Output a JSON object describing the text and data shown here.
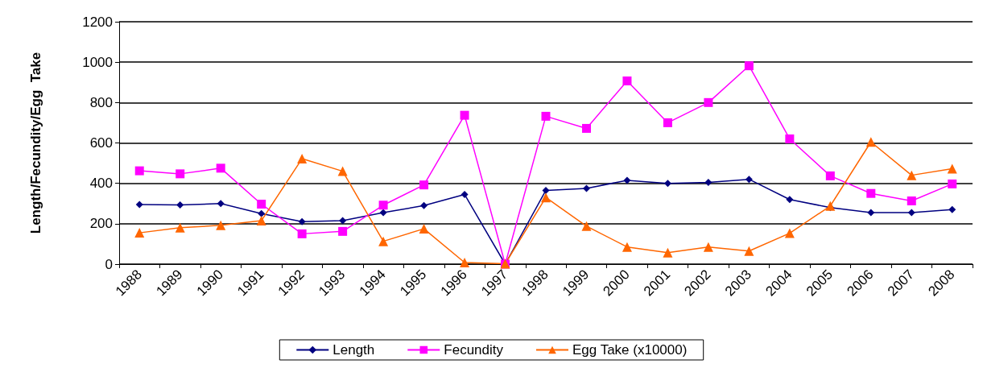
{
  "chart_data": {
    "type": "line",
    "ylabel": "Length/Fecundity/Egg  Take",
    "categories": [
      "1988",
      "1989",
      "1990",
      "1991",
      "1992",
      "1993",
      "1994",
      "1995",
      "1996",
      "1997",
      "1998",
      "1999",
      "2000",
      "2001",
      "2002",
      "2003",
      "2004",
      "2005",
      "2006",
      "2007",
      "2008"
    ],
    "series": [
      {
        "name": "Length",
        "color": "#000080",
        "marker": "diamond",
        "values": [
          295,
          293,
          300,
          250,
          210,
          215,
          255,
          290,
          345,
          0,
          365,
          375,
          415,
          400,
          405,
          420,
          320,
          280,
          255,
          255,
          270
        ]
      },
      {
        "name": "Fecundity",
        "color": "#ff00ff",
        "marker": "square",
        "values": [
          462,
          447,
          475,
          297,
          150,
          162,
          292,
          392,
          737,
          0,
          732,
          672,
          907,
          700,
          800,
          982,
          620,
          437,
          350,
          313,
          397
        ]
      },
      {
        "name": "Egg Take (x10000)",
        "color": "#ff6600",
        "marker": "triangle",
        "values": [
          155,
          180,
          192,
          215,
          522,
          460,
          113,
          175,
          8,
          2,
          330,
          188,
          85,
          57,
          85,
          65,
          153,
          288,
          605,
          440,
          472
        ]
      }
    ],
    "ylim": [
      0,
      1200
    ],
    "yticks": [
      0,
      200,
      400,
      600,
      800,
      1000,
      1200
    ],
    "grid": "y",
    "legend": "bottom",
    "line_style": "solid"
  }
}
